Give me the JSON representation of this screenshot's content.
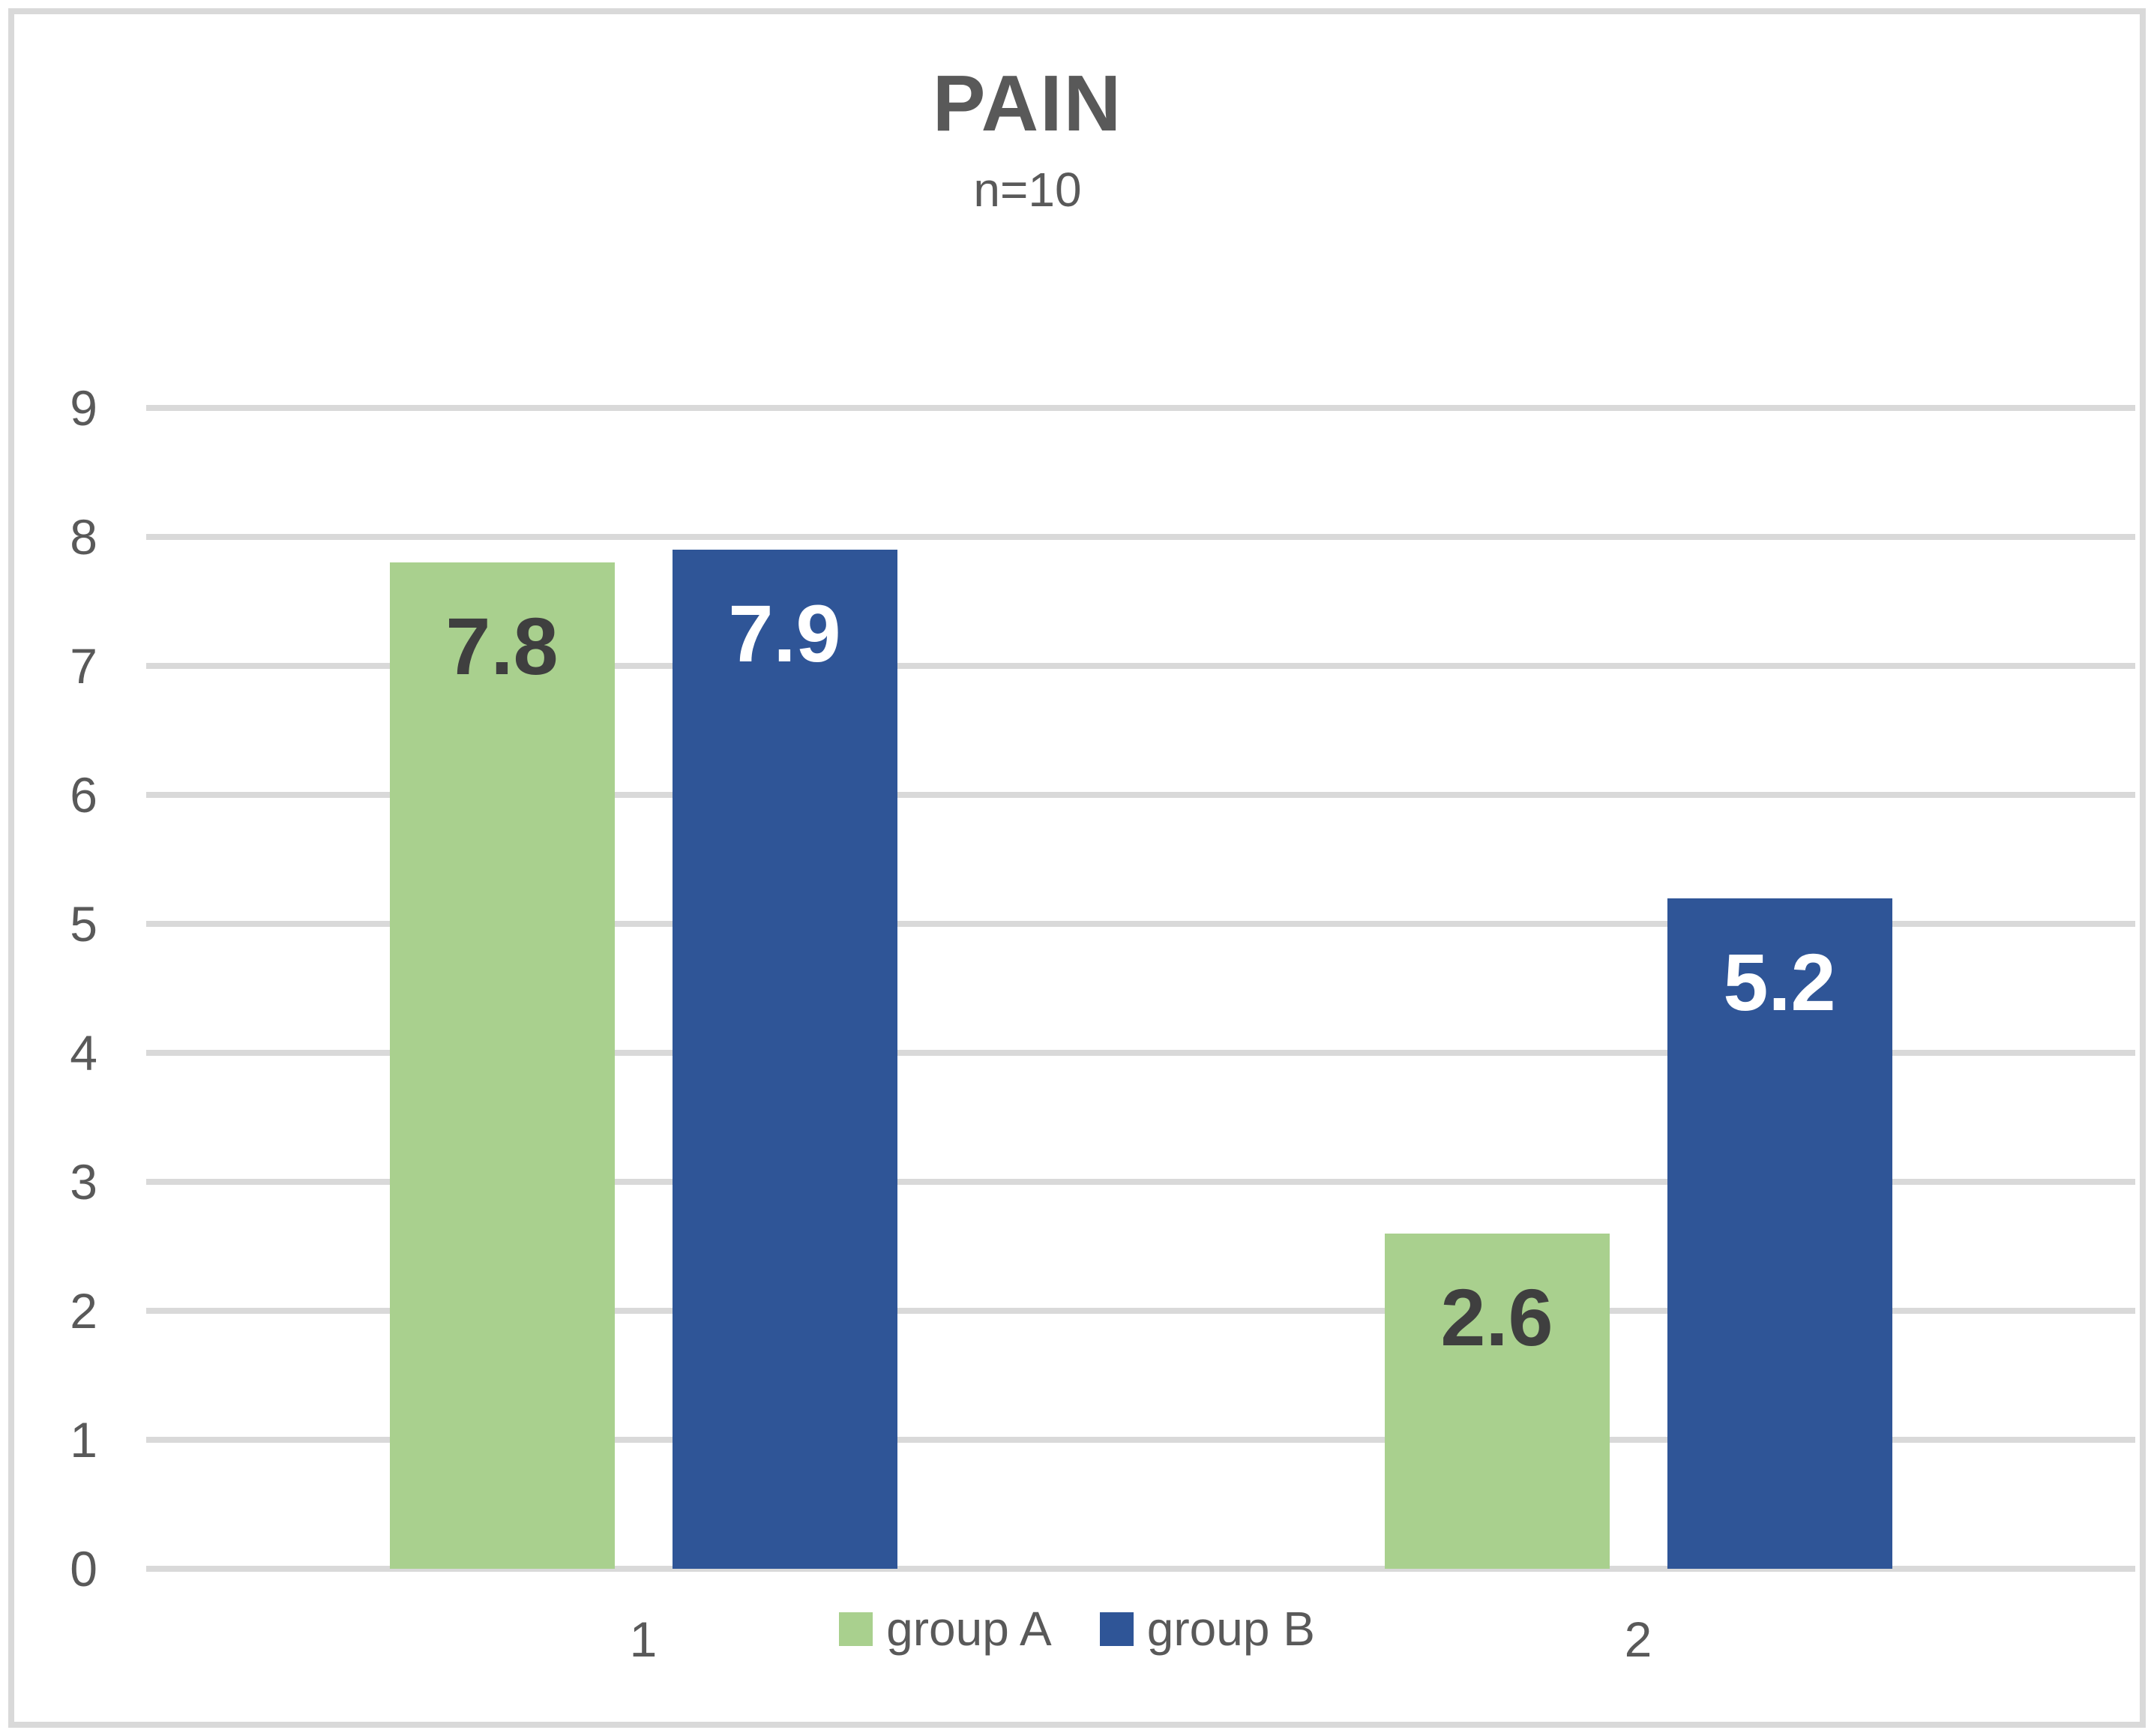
{
  "title": "PAIN",
  "subtitle": "n=10",
  "chart_data": {
    "type": "bar",
    "categories": [
      "1",
      "2"
    ],
    "series": [
      {
        "name": "group A",
        "values": [
          7.8,
          2.6
        ],
        "color": "#A9D08E",
        "value_label_color": "#3F3F3F"
      },
      {
        "name": "group B",
        "values": [
          7.9,
          5.2
        ],
        "color": "#2F5597",
        "value_label_color": "#FFFFFF"
      }
    ],
    "value_labels": [
      "7.8",
      "2.6",
      "7.9",
      "5.2"
    ],
    "value_label_position": "inside-end",
    "ylim": [
      0,
      9
    ],
    "yticks": [
      0,
      1,
      2,
      3,
      4,
      5,
      6,
      7,
      8,
      9
    ],
    "xtick_labels": [
      "1",
      "2"
    ],
    "grid": "horizontal",
    "legend_position": "bottom",
    "colors": {
      "grid": "#D9D9D9",
      "frame_border": "#D9D9D9",
      "axis_text": "#595959",
      "title_text": "#595959"
    }
  }
}
